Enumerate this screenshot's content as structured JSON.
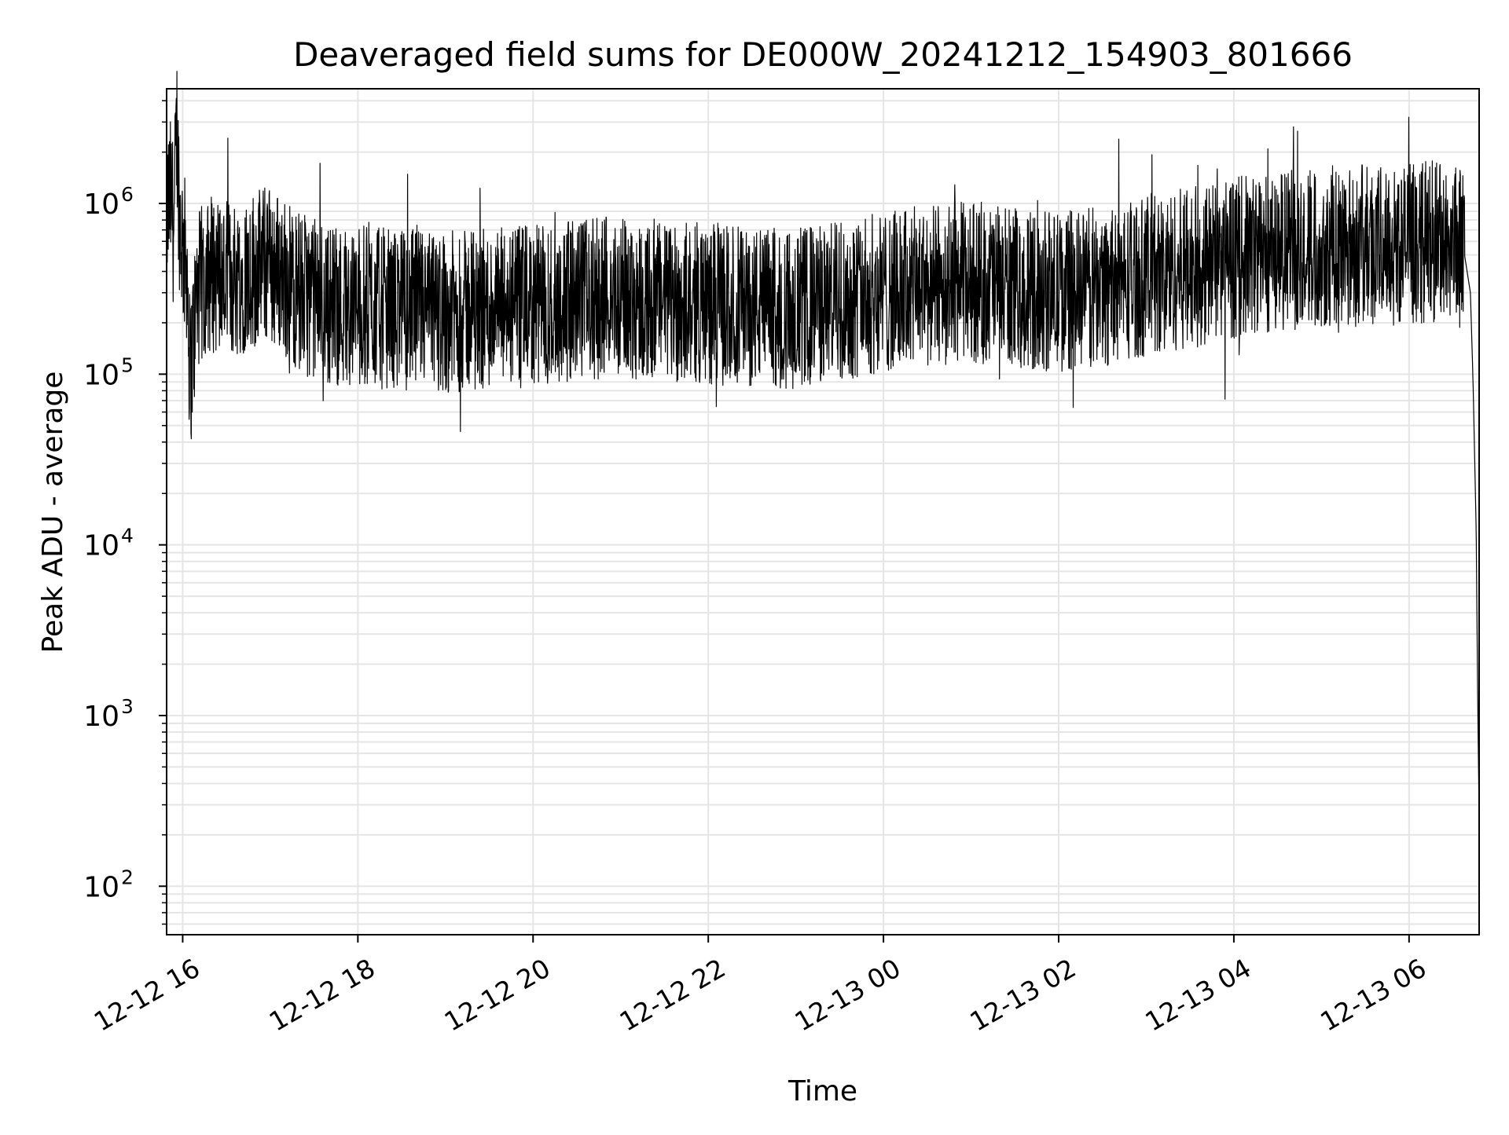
{
  "chart_data": {
    "type": "line",
    "title": "Deaveraged field sums for DE000W_20241212_154903_801666",
    "xlabel": "Time",
    "ylabel": "Peak ADU - average",
    "yscale": "log",
    "ylim": [
      52,
      4700000
    ],
    "xlim": [
      "2024-12-12 15:49",
      "2024-12-13 06:48"
    ],
    "grid": true,
    "legend": "none",
    "line_color": "#000000",
    "grid_color": "#e5e5e5",
    "x_ticks": [
      {
        "value": "2024-12-12 16:00",
        "label": "12-12 16"
      },
      {
        "value": "2024-12-12 18:00",
        "label": "12-12 18"
      },
      {
        "value": "2024-12-12 20:00",
        "label": "12-12 20"
      },
      {
        "value": "2024-12-12 22:00",
        "label": "12-12 22"
      },
      {
        "value": "2024-12-13 00:00",
        "label": "12-13 00"
      },
      {
        "value": "2024-12-13 02:00",
        "label": "12-13 02"
      },
      {
        "value": "2024-12-13 04:00",
        "label": "12-13 04"
      },
      {
        "value": "2024-12-13 06:00",
        "label": "12-13 06"
      }
    ],
    "y_ticks": [
      {
        "value": 100,
        "base": "10",
        "exp": "2"
      },
      {
        "value": 1000,
        "base": "10",
        "exp": "3"
      },
      {
        "value": 10000,
        "base": "10",
        "exp": "4"
      },
      {
        "value": 100000,
        "base": "10",
        "exp": "5"
      },
      {
        "value": 1000000,
        "base": "10",
        "exp": "6"
      }
    ],
    "series": [
      {
        "x": [
          "2024-12-12 15:49",
          "2024-12-12 15:52",
          "2024-12-12 15:54",
          "2024-12-12 15:56",
          "2024-12-12 15:58",
          "2024-12-12 16:01",
          "2024-12-12 16:03",
          "2024-12-12 16:05",
          "2024-12-12 16:10",
          "2024-12-12 16:20",
          "2024-12-12 16:30",
          "2024-12-12 16:40",
          "2024-12-12 16:50",
          "2024-12-12 17:00",
          "2024-12-12 17:20",
          "2024-12-12 17:40",
          "2024-12-12 18:00",
          "2024-12-12 18:30",
          "2024-12-12 19:00",
          "2024-12-12 19:30",
          "2024-12-12 20:00",
          "2024-12-12 20:30",
          "2024-12-12 21:00",
          "2024-12-12 21:30",
          "2024-12-12 22:00",
          "2024-12-12 22:30",
          "2024-12-12 23:00",
          "2024-12-12 23:30",
          "2024-12-13 00:00",
          "2024-12-13 00:30",
          "2024-12-13 01:00",
          "2024-12-13 01:30",
          "2024-12-13 02:00",
          "2024-12-13 02:30",
          "2024-12-13 03:00",
          "2024-12-13 03:30",
          "2024-12-13 04:00",
          "2024-12-13 04:30",
          "2024-12-13 05:00",
          "2024-12-13 05:30",
          "2024-12-13 06:00",
          "2024-12-13 06:15",
          "2024-12-13 06:30",
          "2024-12-13 06:38",
          "2024-12-13 06:42",
          "2024-12-13 06:44",
          "2024-12-13 06:46",
          "2024-12-13 06:47",
          "2024-12-13 06:48"
        ],
        "y": [
          900000,
          1100000,
          700000,
          2800000,
          800000,
          500000,
          450000,
          96000,
          300000,
          400000,
          350000,
          380000,
          420000,
          450000,
          300000,
          260000,
          250000,
          240000,
          230000,
          240000,
          250000,
          270000,
          280000,
          270000,
          260000,
          250000,
          240000,
          270000,
          300000,
          330000,
          350000,
          320000,
          300000,
          330000,
          380000,
          420000,
          480000,
          530000,
          560000,
          570000,
          580000,
          600000,
          620000,
          500000,
          300000,
          80000,
          12000,
          1300,
          250
        ]
      }
    ]
  }
}
